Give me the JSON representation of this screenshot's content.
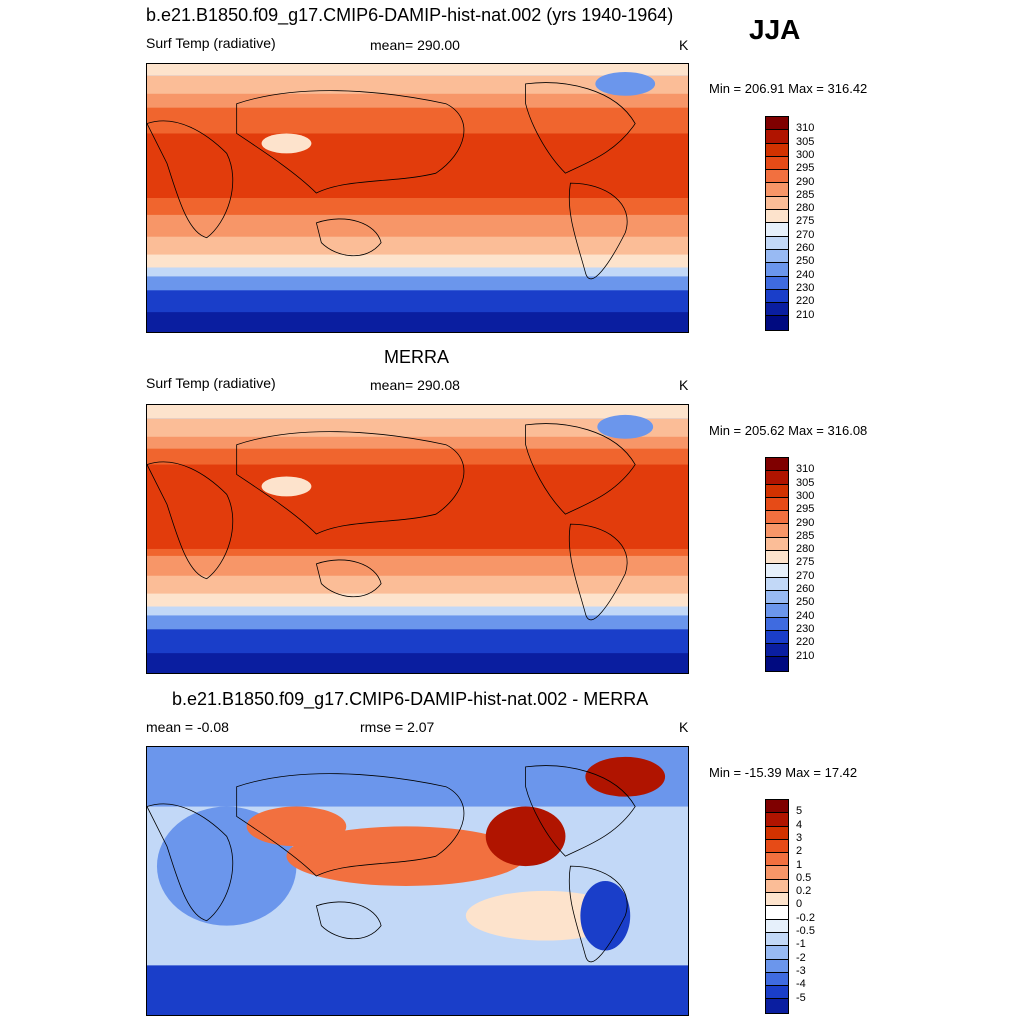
{
  "season": "JJA",
  "panels": [
    {
      "title": "b.e21.B1850.f09_g17.CMIP6-DAMIP-hist-nat.002 (yrs 1940-1964)",
      "left_label": "Surf Temp (radiative)",
      "center_label": "mean= 290.00",
      "units": "K",
      "minmax": "Min = 206.91 Max = 316.42",
      "colorbar": {
        "labels": [
          "310",
          "305",
          "300",
          "295",
          "290",
          "285",
          "280",
          "275",
          "270",
          "260",
          "250",
          "240",
          "230",
          "220",
          "210"
        ],
        "colors": [
          "#7f0000",
          "#b01400",
          "#d23200",
          "#e64b17",
          "#f2703f",
          "#f79668",
          "#fbbd97",
          "#fde3cc",
          "#e6f0fb",
          "#c2d8f7",
          "#98baf3",
          "#6b96ec",
          "#3f6be0",
          "#1a3ec9",
          "#0a1ea0",
          "#000a80"
        ]
      }
    },
    {
      "title": "MERRA",
      "left_label": "Surf Temp (radiative)",
      "center_label": "mean= 290.08",
      "units": "K",
      "minmax": "Min = 205.62 Max = 316.08",
      "colorbar": {
        "labels": [
          "310",
          "305",
          "300",
          "295",
          "290",
          "285",
          "280",
          "275",
          "270",
          "260",
          "250",
          "240",
          "230",
          "220",
          "210"
        ],
        "colors": [
          "#7f0000",
          "#b01400",
          "#d23200",
          "#e64b17",
          "#f2703f",
          "#f79668",
          "#fbbd97",
          "#fde3cc",
          "#e6f0fb",
          "#c2d8f7",
          "#98baf3",
          "#6b96ec",
          "#3f6be0",
          "#1a3ec9",
          "#0a1ea0",
          "#000a80"
        ]
      }
    },
    {
      "title": "b.e21.B1850.f09_g17.CMIP6-DAMIP-hist-nat.002 - MERRA",
      "left_label": "mean =  -0.08",
      "center_label": "rmse =   2.07",
      "units": "K",
      "minmax": "Min = -15.39 Max =  17.42",
      "colorbar": {
        "labels": [
          "5",
          "4",
          "3",
          "2",
          "1",
          "0.5",
          "0.2",
          "0",
          "-0.2",
          "-0.5",
          "-1",
          "-2",
          "-3",
          "-4",
          "-5"
        ],
        "colors": [
          "#7f0000",
          "#b01400",
          "#d23200",
          "#e64b17",
          "#f2703f",
          "#f79668",
          "#fbbd97",
          "#fde3cc",
          "#ffffff",
          "#e6f0fb",
          "#c2d8f7",
          "#98baf3",
          "#6b96ec",
          "#3f6be0",
          "#1a3ec9",
          "#0a1ea0"
        ]
      }
    }
  ],
  "map_colors": {
    "hot": "#e23c0c",
    "warm": "#f0652e",
    "mild": "#f79668",
    "cool": "#fbbd97",
    "pale": "#fde3cc",
    "icy": "#c2d8f7",
    "cold": "#6b96ec",
    "frozen": "#1a3ec9",
    "deep": "#0a1ea0",
    "neg": "#6b96ec",
    "negdeep": "#1a3ec9",
    "pos": "#f2703f",
    "posdeep": "#b01400"
  }
}
